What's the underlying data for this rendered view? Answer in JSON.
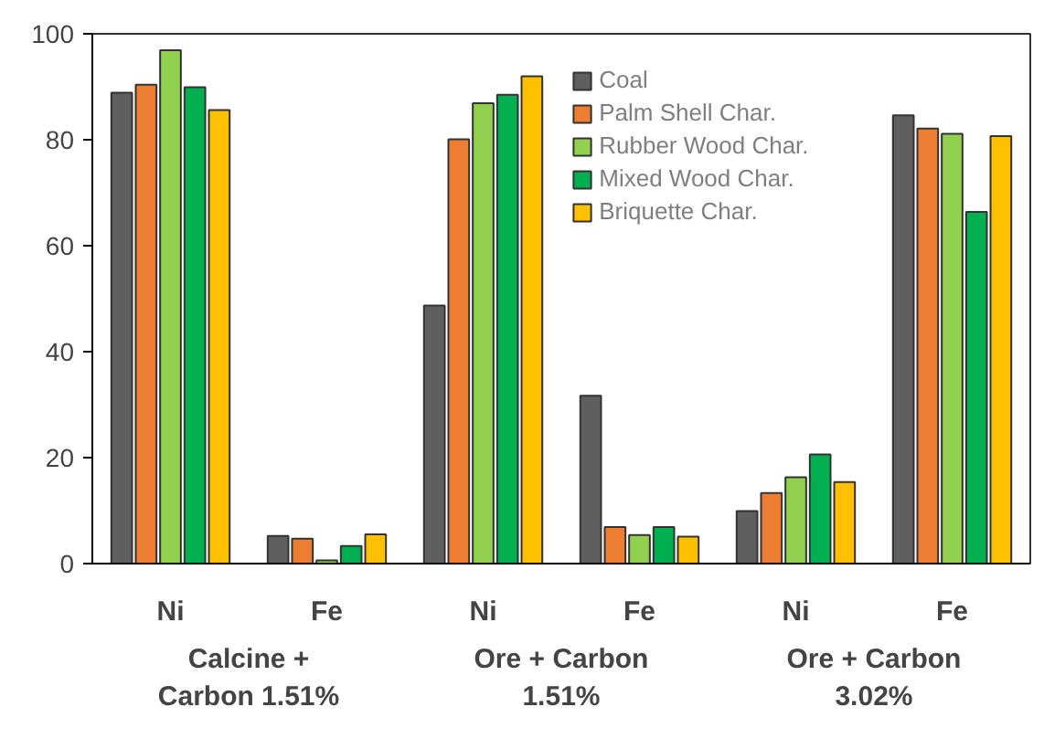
{
  "chart_data": {
    "type": "bar",
    "categories": [
      "Ni",
      "Fe",
      "Ni",
      "Fe",
      "Ni",
      "Fe"
    ],
    "series": [
      {
        "name": "Coal",
        "color": "#5f5f5f",
        "values": [
          88.9,
          5.2,
          48.7,
          31.7,
          9.9,
          84.6
        ]
      },
      {
        "name": "Palm Shell Char.",
        "color": "#ed7d31",
        "values": [
          90.4,
          4.7,
          80.1,
          6.9,
          13.3,
          82.1
        ]
      },
      {
        "name": "Rubber Wood Char.",
        "color": "#92d050",
        "values": [
          96.9,
          0.6,
          86.9,
          5.4,
          16.3,
          81.1
        ]
      },
      {
        "name": "Mixed Wood Char.",
        "color": "#00b050",
        "values": [
          89.9,
          3.3,
          88.5,
          6.9,
          20.6,
          66.4
        ]
      },
      {
        "name": "Briquette Char.",
        "color": "#ffc000",
        "values": [
          85.6,
          5.5,
          92.0,
          5.1,
          15.4,
          80.7
        ]
      }
    ],
    "ylim": [
      0,
      100
    ],
    "yticks": [
      0,
      20,
      40,
      60,
      80,
      100
    ],
    "grid": false,
    "legend": "top right",
    "annotations": [
      "Calcine +\nCarbon 1.51%",
      "Ore + Carbon\n1.51%",
      "Ore + Carbon\n3.02%"
    ]
  }
}
